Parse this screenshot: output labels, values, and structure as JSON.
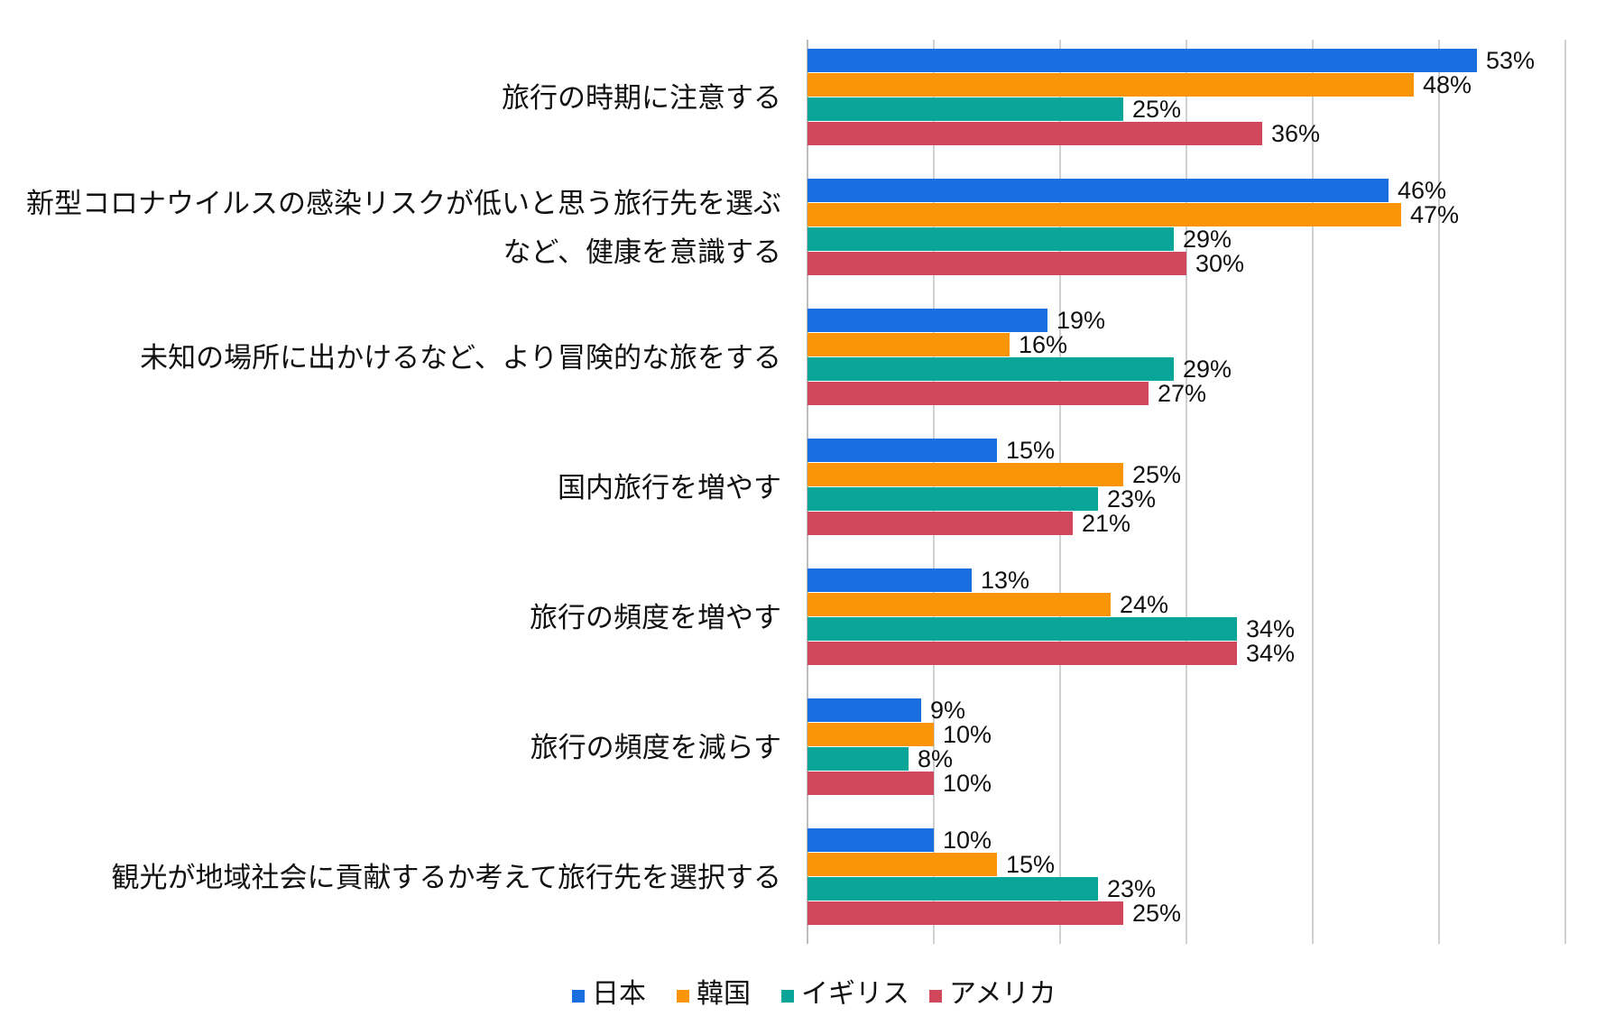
{
  "chart_data": {
    "type": "bar",
    "orientation": "horizontal",
    "categories": [
      [
        "旅行の時期に注意する"
      ],
      [
        "新型コロナウイルスの感染リスクが低いと思う旅行先を選ぶ",
        "など、健康を意識する"
      ],
      [
        "未知の場所に出かけるなど、より冒険的な旅をする"
      ],
      [
        "国内旅行を増やす"
      ],
      [
        "旅行の頻度を増やす"
      ],
      [
        "旅行の頻度を減らす"
      ],
      [
        "観光が地域社会に貢献するか考えて旅行先を選択する"
      ]
    ],
    "series": [
      {
        "name": "日本",
        "color": "#1a6fe0",
        "values": [
          53,
          46,
          19,
          15,
          13,
          9,
          10
        ]
      },
      {
        "name": "韓国",
        "color": "#f99507",
        "values": [
          48,
          47,
          16,
          25,
          24,
          10,
          15
        ]
      },
      {
        "name": "イギリス",
        "color": "#09a598",
        "values": [
          25,
          29,
          29,
          23,
          34,
          8,
          23
        ]
      },
      {
        "name": "アメリカ",
        "color": "#d1475b",
        "values": [
          36,
          30,
          27,
          21,
          34,
          10,
          25
        ]
      }
    ],
    "value_suffix": "%",
    "xlim": [
      0,
      60
    ],
    "grid": true,
    "legend": "bottom"
  }
}
